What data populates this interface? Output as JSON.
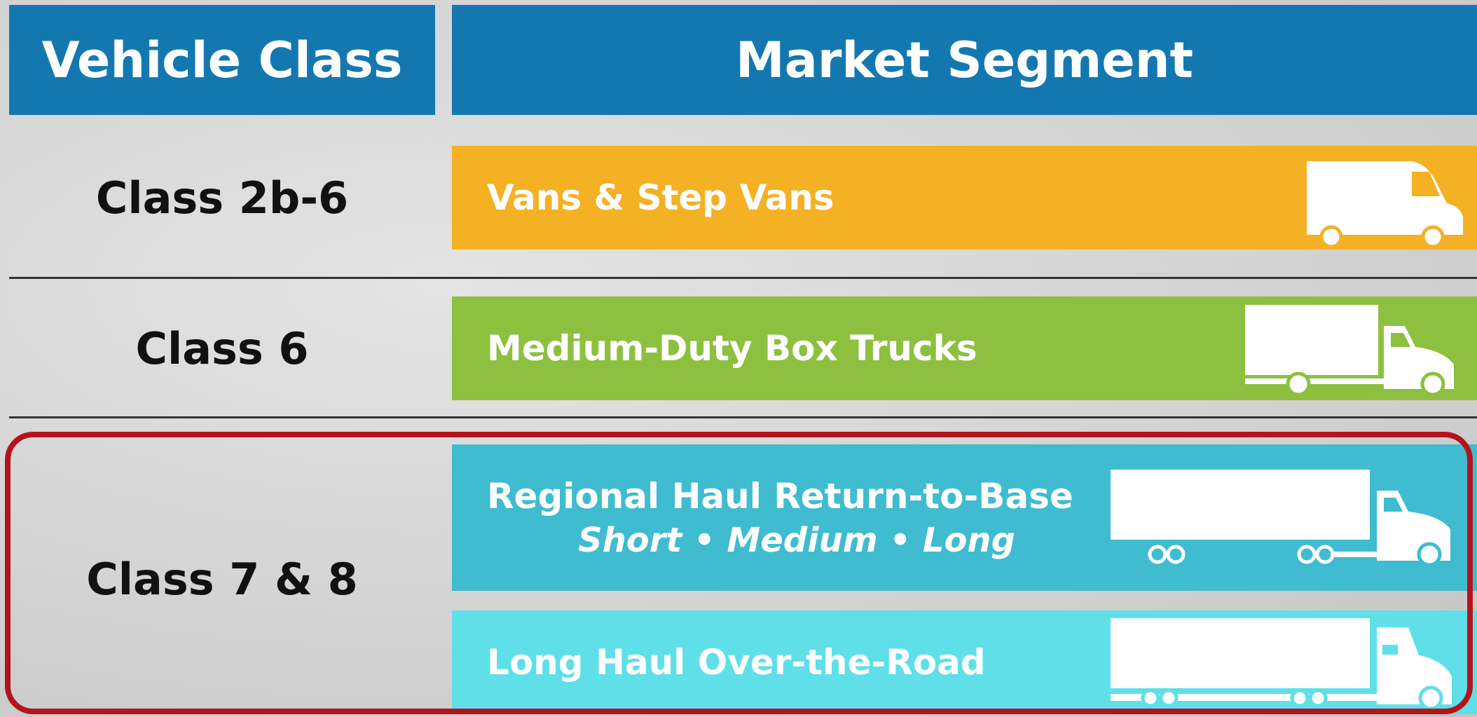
{
  "header": {
    "vehicle_class": "Vehicle Class",
    "market_segment": "Market Segment"
  },
  "rows": [
    {
      "vehicle_class": "Class 2b-6",
      "segments": [
        {
          "label": "Vans & Step Vans"
        }
      ]
    },
    {
      "vehicle_class": "Class 6",
      "segments": [
        {
          "label": "Medium-Duty Box Trucks"
        }
      ]
    },
    {
      "vehicle_class": "Class 7 & 8",
      "segments": [
        {
          "label": "Regional Haul Return-to-Base",
          "subtitle": "Short • Medium • Long"
        },
        {
          "label": "Long Haul Over-the-Road"
        }
      ]
    }
  ]
}
